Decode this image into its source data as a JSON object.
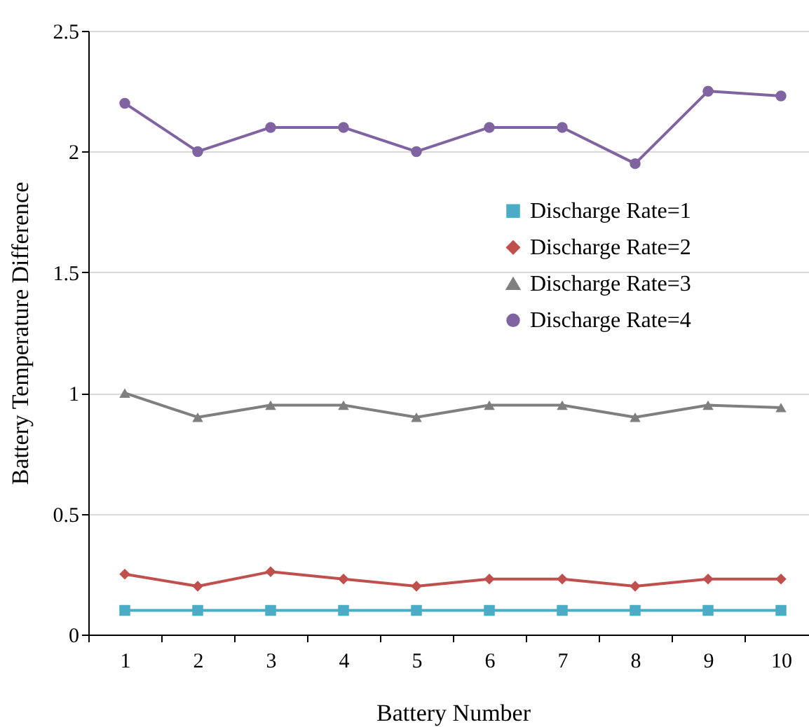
{
  "chart_data": {
    "type": "line",
    "xlabel": "Battery Number",
    "ylabel": "Battery Temperature Difference",
    "categories": [
      "1",
      "2",
      "3",
      "4",
      "5",
      "6",
      "7",
      "8",
      "9",
      "10"
    ],
    "ylim": [
      0,
      2.5
    ],
    "yticks": [
      0,
      0.5,
      1,
      1.5,
      2,
      2.5
    ],
    "grid": "y",
    "legend": "right",
    "series": [
      {
        "name": "Discharge Rate=1",
        "color": "#4bacc6",
        "marker": "square",
        "values": [
          0.1,
          0.1,
          0.1,
          0.1,
          0.1,
          0.1,
          0.1,
          0.1,
          0.1,
          0.1
        ]
      },
      {
        "name": "Discharge Rate=2",
        "color": "#c0504d",
        "marker": "diamond",
        "values": [
          0.25,
          0.2,
          0.26,
          0.23,
          0.2,
          0.23,
          0.23,
          0.2,
          0.23,
          0.23
        ]
      },
      {
        "name": "Discharge Rate=3",
        "color": "#7f7f7f",
        "marker": "triangle",
        "values": [
          1.0,
          0.9,
          0.95,
          0.95,
          0.9,
          0.95,
          0.95,
          0.9,
          0.95,
          0.94
        ]
      },
      {
        "name": "Discharge Rate=4",
        "color": "#8064a2",
        "marker": "circle",
        "values": [
          2.2,
          2.0,
          2.1,
          2.1,
          2.0,
          2.1,
          2.1,
          1.95,
          2.25,
          2.23
        ]
      }
    ]
  }
}
